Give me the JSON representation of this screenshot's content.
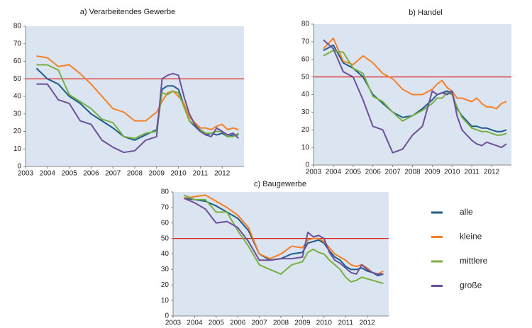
{
  "chart_data": [
    {
      "type": "line",
      "title": "a) Verarbeitendes Gewerbe",
      "x": [
        2003.5,
        2004,
        2004.5,
        2005,
        2005.5,
        2006,
        2006.5,
        2007,
        2007.5,
        2008,
        2008.5,
        2009,
        2009.25,
        2009.5,
        2009.75,
        2010,
        2010.25,
        2010.5,
        2010.75,
        2011,
        2011.25,
        2011.5,
        2011.75,
        2012,
        2012.25,
        2012.5,
        2012.75
      ],
      "series": [
        {
          "color": "#1f5c8b",
          "values": [
            56,
            50,
            47,
            40,
            36,
            30,
            26,
            22,
            17,
            15,
            18,
            21,
            44,
            46,
            46,
            44,
            35,
            26,
            23,
            20,
            18,
            19,
            18,
            19,
            17,
            18,
            18
          ]
        },
        {
          "color": "#f58025",
          "values": [
            63,
            62,
            57,
            58,
            53,
            47,
            40,
            33,
            31,
            26,
            26,
            31,
            37,
            42,
            43,
            40,
            36,
            28,
            25,
            22,
            22,
            21,
            23,
            24,
            21,
            22,
            21
          ]
        },
        {
          "color": "#77b041",
          "values": [
            58,
            58,
            55,
            41,
            37,
            33,
            27,
            25,
            17,
            16,
            19,
            20,
            42,
            41,
            43,
            42,
            34,
            26,
            24,
            21,
            19,
            19,
            20,
            20,
            17,
            17,
            19
          ]
        },
        {
          "color": "#6c4f98",
          "values": [
            47,
            47,
            38,
            36,
            26,
            24,
            15,
            11,
            8,
            9,
            15,
            17,
            50,
            52,
            53,
            52,
            40,
            30,
            24,
            20,
            18,
            17,
            22,
            20,
            18,
            19,
            16
          ]
        }
      ],
      "xlim": [
        2003,
        2013
      ],
      "xticks": [
        2003,
        2004,
        2005,
        2006,
        2007,
        2008,
        2009,
        2010,
        2011,
        2012
      ],
      "ylim": [
        0,
        80
      ],
      "yticks": [
        0,
        10,
        20,
        30,
        40,
        50,
        60,
        70,
        80
      ],
      "hline": 50,
      "hline_color": "#e3211c"
    },
    {
      "type": "line",
      "title": "b) Handel",
      "x": [
        2003.5,
        2004,
        2004.5,
        2005,
        2005.5,
        2006,
        2006.5,
        2007,
        2007.5,
        2008,
        2008.5,
        2009,
        2009.25,
        2009.5,
        2009.75,
        2010,
        2010.25,
        2010.5,
        2010.75,
        2011,
        2011.25,
        2011.5,
        2011.75,
        2012,
        2012.25,
        2012.5,
        2012.75
      ],
      "series": [
        {
          "color": "#1f5c8b",
          "values": [
            65,
            68,
            58,
            55,
            50,
            40,
            35,
            30,
            27,
            28,
            32,
            37,
            40,
            41,
            42,
            41,
            32,
            28,
            25,
            22,
            22,
            21,
            21,
            20,
            19,
            19,
            20
          ]
        },
        {
          "color": "#f58025",
          "values": [
            66,
            72,
            59,
            57,
            62,
            58,
            52,
            49,
            43,
            40,
            40,
            43,
            46,
            48,
            44,
            42,
            38,
            38,
            37,
            36,
            38,
            35,
            33,
            33,
            32,
            35,
            36
          ]
        },
        {
          "color": "#77b041",
          "values": [
            62,
            65,
            64,
            55,
            52,
            39,
            36,
            30,
            25,
            28,
            31,
            35,
            38,
            38,
            41,
            40,
            33,
            27,
            24,
            21,
            20,
            19,
            19,
            18,
            17,
            17,
            18
          ]
        },
        {
          "color": "#6c4f98",
          "values": [
            71,
            66,
            53,
            50,
            37,
            22,
            20,
            7,
            9,
            17,
            22,
            42,
            40,
            41,
            40,
            42,
            28,
            20,
            17,
            14,
            12,
            11,
            13,
            12,
            11,
            10,
            12
          ]
        }
      ],
      "xlim": [
        2003,
        2013
      ],
      "xticks": [
        2003,
        2004,
        2005,
        2006,
        2007,
        2008,
        2009,
        2010,
        2011,
        2012
      ],
      "ylim": [
        0,
        80
      ],
      "yticks": [
        0,
        10,
        20,
        30,
        40,
        50,
        60,
        70,
        80
      ],
      "hline": 50,
      "hline_color": "#e3211c"
    },
    {
      "type": "line",
      "title": "c) Baugewerbe",
      "x": [
        2003.5,
        2004,
        2004.5,
        2005,
        2005.5,
        2006,
        2006.5,
        2007,
        2007.5,
        2008,
        2008.5,
        2009,
        2009.25,
        2009.5,
        2009.75,
        2010,
        2010.25,
        2010.5,
        2010.75,
        2011,
        2011.25,
        2011.5,
        2011.75,
        2012,
        2012.25,
        2012.5,
        2012.75
      ],
      "series": [
        {
          "name": "alle",
          "color": "#1f5c8b",
          "values": [
            76,
            75,
            74,
            71,
            67,
            63,
            55,
            40,
            36,
            37,
            40,
            41,
            47,
            48,
            49,
            47,
            42,
            38,
            36,
            32,
            30,
            30,
            31,
            29,
            28,
            26,
            27
          ]
        },
        {
          "name": "kleine",
          "color": "#f58025",
          "values": [
            76,
            77,
            78,
            74,
            70,
            65,
            57,
            40,
            37,
            40,
            45,
            44,
            49,
            50,
            50,
            48,
            44,
            40,
            38,
            36,
            33,
            32,
            33,
            31,
            28,
            27,
            29
          ]
        },
        {
          "name": "mittlere",
          "color": "#77b041",
          "values": [
            78,
            75,
            75,
            67,
            67,
            55,
            45,
            33,
            30,
            27,
            33,
            35,
            41,
            43,
            41,
            40,
            36,
            33,
            30,
            25,
            22,
            23,
            25,
            24,
            23,
            22,
            21
          ]
        },
        {
          "name": "große",
          "color": "#6c4f98",
          "values": [
            76,
            73,
            69,
            60,
            61,
            57,
            48,
            36,
            36,
            37,
            37,
            38,
            54,
            51,
            52,
            50,
            41,
            36,
            34,
            31,
            28,
            27,
            33,
            30,
            28,
            27,
            27
          ]
        }
      ],
      "xlim": [
        2003,
        2013
      ],
      "xticks": [
        2003,
        2004,
        2005,
        2006,
        2007,
        2008,
        2009,
        2010,
        2011,
        2012
      ],
      "ylim": [
        0,
        80
      ],
      "yticks": [
        0,
        10,
        20,
        30,
        40,
        50,
        60,
        70,
        80
      ],
      "hline": 50,
      "hline_color": "#e3211c"
    }
  ]
}
